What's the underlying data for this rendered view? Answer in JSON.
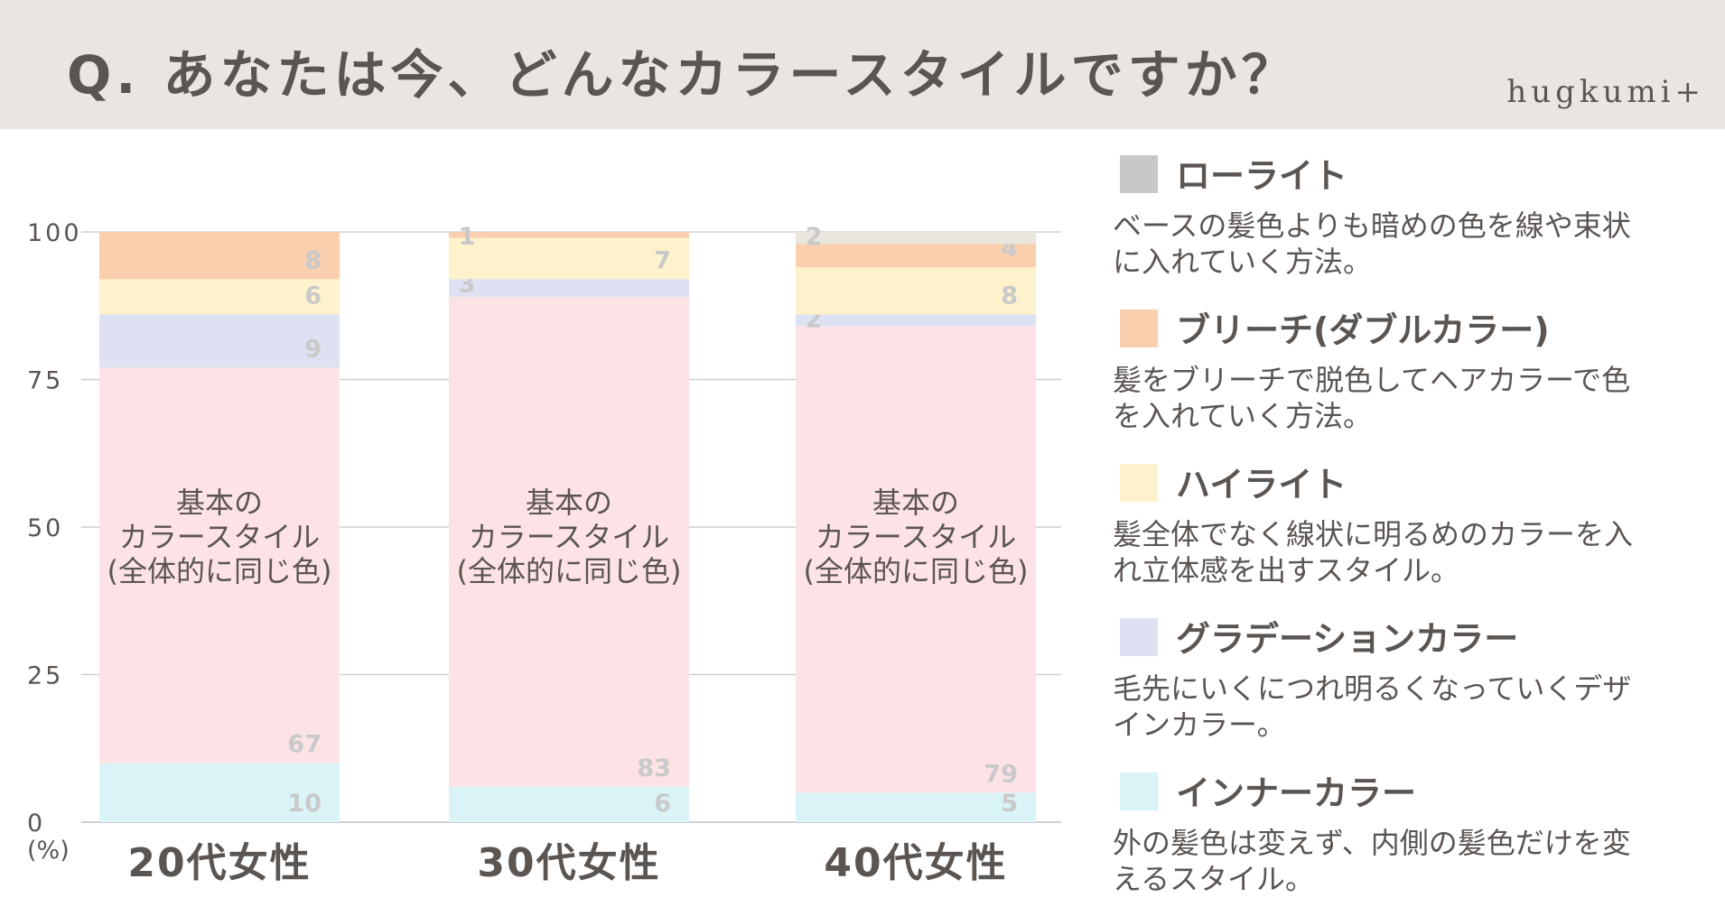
{
  "header": {
    "title": "Q. あなたは今、どんなカラースタイルですか？",
    "brand": "hugkumi+"
  },
  "colors": {
    "header_bg": "#e9e6e1",
    "text": "#5b5552",
    "grid": "#cfcfcf",
    "value_label": "#c9c9c9"
  },
  "chart_data": {
    "type": "bar",
    "stacked": true,
    "categories": [
      "20代女性",
      "30代女性",
      "40代女性"
    ],
    "series": [
      {
        "name": "インナーカラー",
        "color": "#daf3f6",
        "values": [
          10,
          6,
          5
        ]
      },
      {
        "name": "基本のカラースタイル(全体的に同じ色)",
        "color": "#fde3e5",
        "values": [
          67,
          83,
          79
        ]
      },
      {
        "name": "グラデーションカラー",
        "color": "#dee1f2",
        "values": [
          9,
          3,
          2
        ]
      },
      {
        "name": "ハイライト",
        "color": "#fdf2cc",
        "values": [
          6,
          7,
          8
        ]
      },
      {
        "name": "ブリーチ(ダブルカラー)",
        "color": "#f9cfae",
        "values": [
          8,
          1,
          4
        ]
      },
      {
        "name": "ローライト",
        "color": "#e8e6df",
        "values": [
          0,
          0,
          2
        ]
      }
    ],
    "bar_inner_label_lines": [
      "基本の",
      "カラースタイル",
      "(全体的に同じ色)"
    ],
    "yticks": [
      "0",
      "25",
      "50",
      "75",
      "100"
    ],
    "ylim": [
      0,
      100
    ],
    "yunit": "(%)",
    "grid": true,
    "legend_position": "right"
  },
  "legend": [
    {
      "title": "ローライト",
      "color": "#c8c8c8",
      "desc": "ベースの髪色よりも暗めの色を線や束状に入れていく方法。"
    },
    {
      "title": "ブリーチ(ダブルカラー)",
      "color": "#f9cfae",
      "desc": "髪をブリーチで脱色してヘアカラーで色を入れていく方法。"
    },
    {
      "title": "ハイライト",
      "color": "#fdf2cc",
      "desc": "髪全体でなく線状に明るめのカラーを入れ立体感を出すスタイル。"
    },
    {
      "title": "グラデーションカラー",
      "color": "#dee1f2",
      "desc": "毛先にいくにつれ明るくなっていくデザインカラー。"
    },
    {
      "title": "インナーカラー",
      "color": "#daf3f6",
      "desc": "外の髪色は変えず、内側の髪色だけを変えるスタイル。"
    }
  ]
}
